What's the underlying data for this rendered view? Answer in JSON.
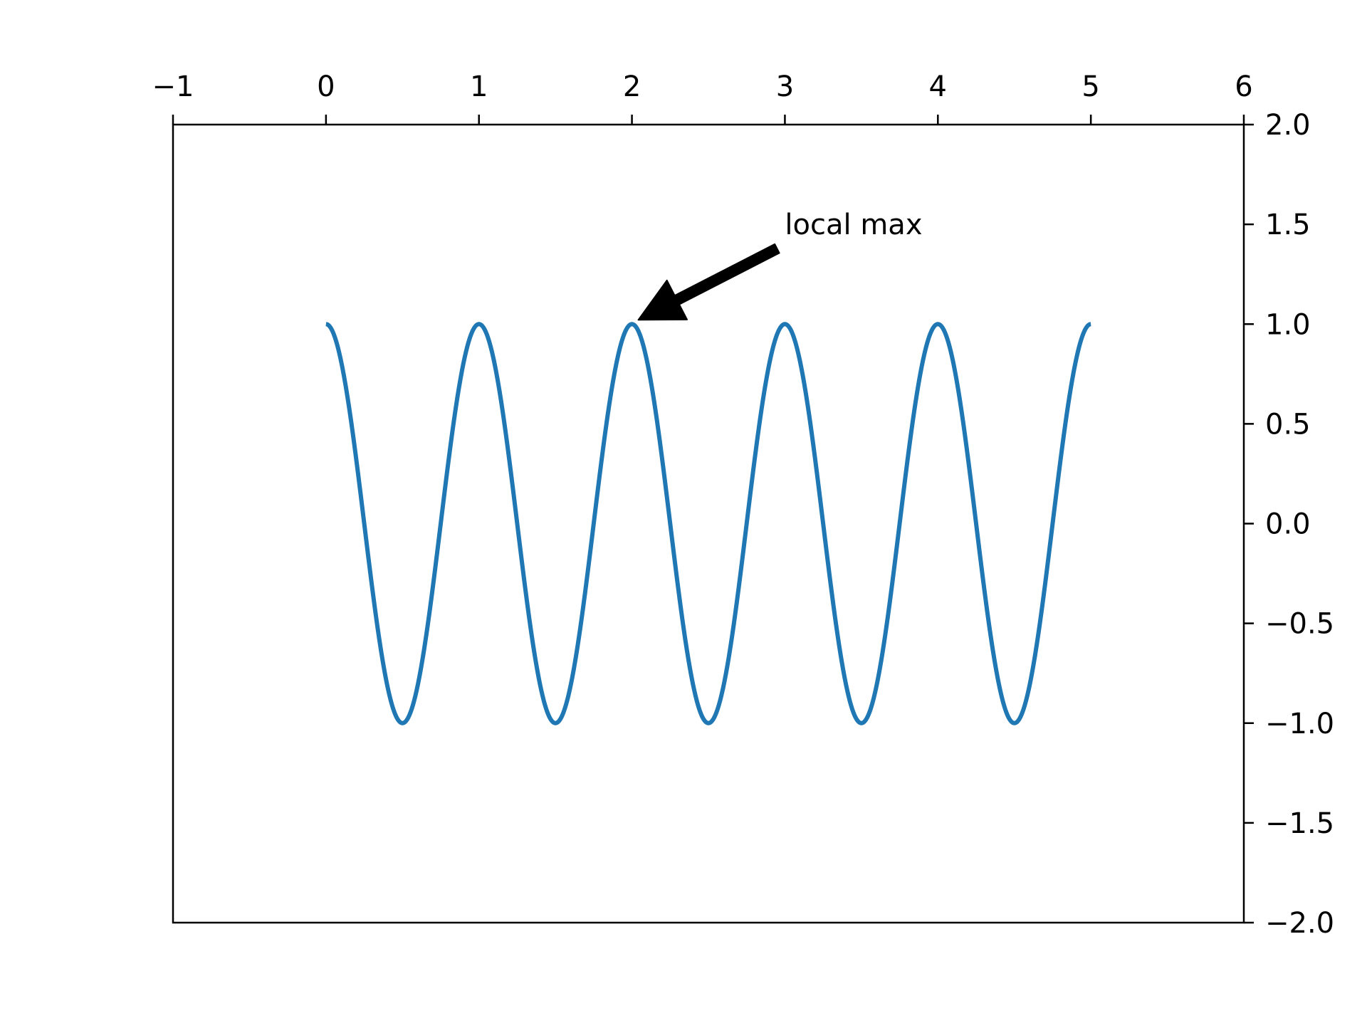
{
  "chart_data": {
    "type": "line",
    "title": "",
    "xlabel": "",
    "ylabel": "",
    "xlim": [
      -1,
      6
    ],
    "ylim": [
      -2.0,
      2.0
    ],
    "x_axis_position": "top",
    "y_axis_position": "right",
    "grid": false,
    "xticks": [
      -1,
      0,
      1,
      2,
      3,
      4,
      5,
      6
    ],
    "xtick_labels": [
      "−1",
      "0",
      "1",
      "2",
      "3",
      "4",
      "5",
      "6"
    ],
    "yticks": [
      2.0,
      1.5,
      1.0,
      0.5,
      0.0,
      -0.5,
      -1.0,
      -1.5,
      -2.0
    ],
    "ytick_labels": [
      "2.0",
      "1.5",
      "1.0",
      "0.5",
      "0.0",
      "−0.5",
      "−1.0",
      "−1.5",
      "−2.0"
    ],
    "series": [
      {
        "function": "cos(2πx)",
        "x_range": [
          0,
          5
        ],
        "color": "#1f77b4"
      }
    ],
    "annotations": [
      {
        "text": "local max",
        "xy": [
          2,
          1
        ],
        "xytext": [
          3,
          1.5
        ],
        "arrow_color": "#000000"
      }
    ]
  }
}
